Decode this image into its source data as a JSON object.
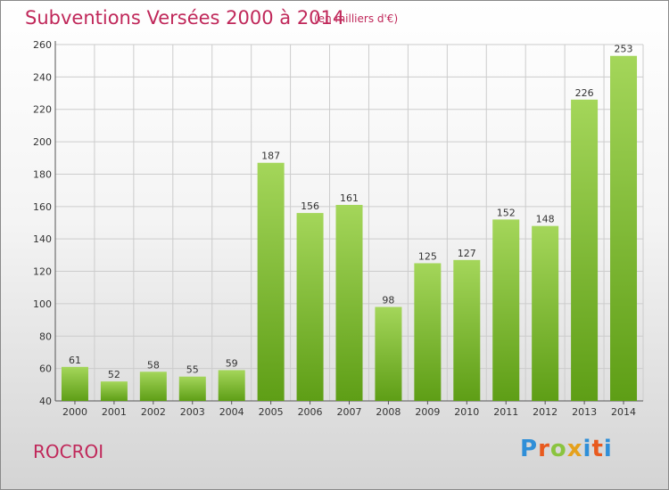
{
  "header": {
    "title": "Subventions Versées 2000 à 2014",
    "unit_note": "(en milliers d'€)"
  },
  "footer": {
    "commune": "ROCROI",
    "logo_text": "Proxiti",
    "logo_parts": [
      "P",
      "r",
      "o",
      "x",
      "i",
      "t",
      "i"
    ]
  },
  "colors": {
    "title": "#c0285a",
    "bar_top": "#a4d65a",
    "bar_bottom": "#5e9e16",
    "grid": "#cccccc"
  },
  "chart_data": {
    "type": "bar",
    "title": "Subventions Versées 2000 à 2014",
    "subtitle": "(en milliers d'€)",
    "xlabel": "",
    "ylabel": "",
    "categories": [
      "2000",
      "2001",
      "2002",
      "2003",
      "2004",
      "2005",
      "2006",
      "2007",
      "2008",
      "2009",
      "2010",
      "2011",
      "2012",
      "2013",
      "2014"
    ],
    "values": [
      61,
      52,
      58,
      55,
      59,
      187,
      156,
      161,
      98,
      125,
      127,
      152,
      148,
      226,
      253
    ],
    "ylim": [
      40,
      260
    ],
    "yticks": [
      40,
      60,
      80,
      100,
      120,
      140,
      160,
      180,
      200,
      220,
      240,
      260
    ],
    "grid": true,
    "data_labels": true
  }
}
